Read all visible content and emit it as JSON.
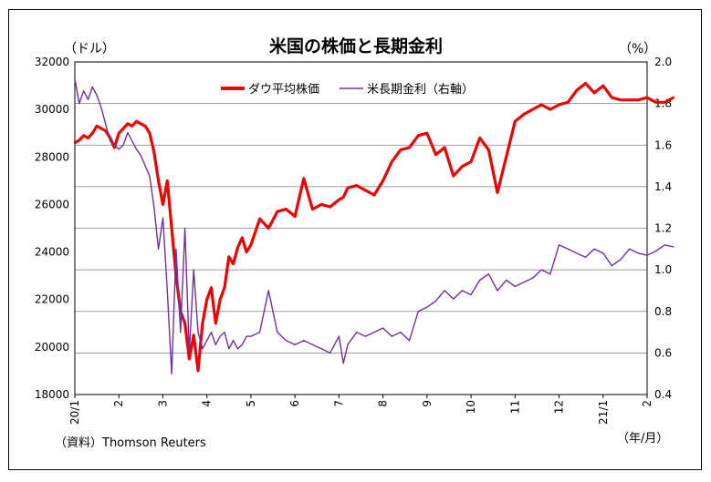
{
  "chart_data": {
    "type": "line",
    "title": "米国の株価と長期金利",
    "left_axis_unit": "（ドル）",
    "right_axis_unit": "（%）",
    "x_axis_unit": "（年/月）",
    "source_note": "（資料）Thomson Reuters",
    "x_tick_labels": [
      "20/1",
      "2",
      "3",
      "4",
      "5",
      "6",
      "7",
      "8",
      "9",
      "10",
      "11",
      "12",
      "21/1",
      "2"
    ],
    "left_axis": {
      "min": 18000,
      "max": 32000,
      "ticks": [
        "18000",
        "20000",
        "22000",
        "24000",
        "26000",
        "28000",
        "30000",
        "32000"
      ]
    },
    "right_axis": {
      "min": 0.4,
      "max": 2.0,
      "ticks": [
        "0.4",
        "0.6",
        "0.8",
        "1.0",
        "1.2",
        "1.4",
        "1.6",
        "1.8",
        "2.0"
      ]
    },
    "grid": "horizontal",
    "legend_position": "top-center",
    "series": [
      {
        "name": "ダウ平均株価",
        "axis": "left",
        "color": "#ee0000",
        "x": [
          0,
          0.1,
          0.2,
          0.3,
          0.4,
          0.5,
          0.6,
          0.7,
          0.8,
          0.9,
          1.0,
          1.1,
          1.2,
          1.3,
          1.4,
          1.5,
          1.6,
          1.7,
          1.8,
          1.9,
          2.0,
          2.1,
          2.2,
          2.3,
          2.4,
          2.5,
          2.6,
          2.7,
          2.8,
          2.9,
          3.0,
          3.1,
          3.2,
          3.3,
          3.4,
          3.5,
          3.6,
          3.7,
          3.8,
          3.9,
          4.0,
          4.2,
          4.4,
          4.6,
          4.8,
          5.0,
          5.2,
          5.4,
          5.6,
          5.8,
          6.0,
          6.1,
          6.2,
          6.4,
          6.6,
          6.8,
          7.0,
          7.2,
          7.4,
          7.6,
          7.8,
          8.0,
          8.2,
          8.4,
          8.6,
          8.8,
          9.0,
          9.2,
          9.4,
          9.6,
          9.8,
          10.0,
          10.2,
          10.4,
          10.6,
          10.8,
          11.0,
          11.2,
          11.4,
          11.6,
          11.8,
          12.0,
          12.2,
          12.4,
          12.6,
          12.8,
          13.0,
          13.2,
          13.4,
          13.6
        ],
        "values": [
          28600,
          28700,
          28900,
          28800,
          29000,
          29300,
          29200,
          29100,
          28800,
          28400,
          29000,
          29200,
          29400,
          29300,
          29500,
          29400,
          29300,
          29000,
          28200,
          27000,
          26000,
          27000,
          25000,
          23000,
          21500,
          21000,
          19500,
          20500,
          19000,
          21000,
          22000,
          22500,
          21000,
          22000,
          22500,
          23800,
          23500,
          24200,
          24600,
          24000,
          24300,
          25400,
          25000,
          25700,
          25800,
          25500,
          27100,
          25800,
          26000,
          25900,
          26200,
          26300,
          26700,
          26800,
          26600,
          26400,
          27000,
          27800,
          28300,
          28400,
          28900,
          29000,
          28100,
          28400,
          27200,
          27600,
          27800,
          28800,
          28300,
          26500,
          28000,
          29500,
          29800,
          30000,
          30200,
          30000,
          30200,
          30300,
          30800,
          31100,
          30700,
          31000,
          30500,
          30400,
          30400,
          30400,
          30500,
          30300,
          30300,
          30500
        ],
        "x_start_month_index": 0
      },
      {
        "name": "米長期金利（右軸）",
        "axis": "right",
        "color": "#7030a0",
        "x": [
          0,
          0.1,
          0.2,
          0.3,
          0.4,
          0.5,
          0.6,
          0.7,
          0.8,
          0.9,
          1.0,
          1.1,
          1.2,
          1.3,
          1.4,
          1.5,
          1.6,
          1.7,
          1.8,
          1.9,
          2.0,
          2.1,
          2.2,
          2.3,
          2.4,
          2.5,
          2.6,
          2.7,
          2.8,
          2.9,
          3.0,
          3.1,
          3.2,
          3.3,
          3.4,
          3.5,
          3.6,
          3.7,
          3.8,
          3.9,
          4.0,
          4.2,
          4.4,
          4.6,
          4.8,
          5.0,
          5.2,
          5.4,
          5.6,
          5.8,
          6.0,
          6.1,
          6.2,
          6.4,
          6.6,
          6.8,
          7.0,
          7.2,
          7.4,
          7.6,
          7.8,
          8.0,
          8.2,
          8.4,
          8.6,
          8.8,
          9.0,
          9.2,
          9.4,
          9.6,
          9.8,
          10.0,
          10.2,
          10.4,
          10.6,
          10.8,
          11.0,
          11.2,
          11.4,
          11.6,
          11.8,
          12.0,
          12.2,
          12.4,
          12.6,
          12.8,
          13.0,
          13.2,
          13.4,
          13.6
        ],
        "values": [
          1.92,
          1.8,
          1.86,
          1.82,
          1.88,
          1.84,
          1.78,
          1.7,
          1.62,
          1.6,
          1.58,
          1.6,
          1.66,
          1.62,
          1.58,
          1.55,
          1.5,
          1.45,
          1.3,
          1.1,
          1.25,
          0.9,
          0.5,
          1.1,
          0.7,
          1.2,
          0.6,
          1.0,
          0.7,
          0.62,
          0.66,
          0.7,
          0.64,
          0.68,
          0.7,
          0.62,
          0.66,
          0.62,
          0.64,
          0.68,
          0.68,
          0.7,
          0.9,
          0.7,
          0.66,
          0.64,
          0.66,
          0.64,
          0.62,
          0.6,
          0.68,
          0.55,
          0.64,
          0.7,
          0.68,
          0.7,
          0.72,
          0.68,
          0.7,
          0.66,
          0.8,
          0.82,
          0.85,
          0.9,
          0.86,
          0.9,
          0.88,
          0.95,
          0.98,
          0.9,
          0.95,
          0.92,
          0.94,
          0.96,
          1.0,
          0.98,
          1.12,
          1.1,
          1.08,
          1.06,
          1.1,
          1.08,
          1.02,
          1.05,
          1.1,
          1.08,
          1.07,
          1.09,
          1.12,
          1.11
        ]
      }
    ]
  }
}
